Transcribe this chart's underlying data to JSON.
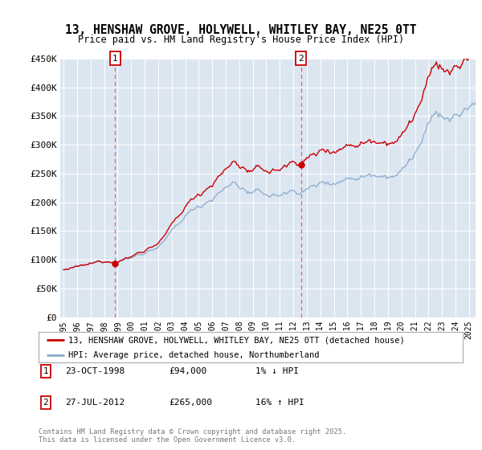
{
  "title": "13, HENSHAW GROVE, HOLYWELL, WHITLEY BAY, NE25 0TT",
  "subtitle": "Price paid vs. HM Land Registry's House Price Index (HPI)",
  "ylim": [
    0,
    450000
  ],
  "xlim_start": 1994.75,
  "xlim_end": 2025.5,
  "sale1_x": 1998.81,
  "sale1_y": 94000,
  "sale1_label": "1",
  "sale2_x": 2012.57,
  "sale2_y": 265000,
  "sale2_label": "2",
  "red_line_color": "#cc0000",
  "blue_line_color": "#88aacc",
  "dashed_line_color": "#dd6666",
  "background_color": "#dce6f1",
  "legend_line1": "13, HENSHAW GROVE, HOLYWELL, WHITLEY BAY, NE25 0TT (detached house)",
  "legend_line2": "HPI: Average price, detached house, Northumberland",
  "footnote_line1": "Contains HM Land Registry data © Crown copyright and database right 2025.",
  "footnote_line2": "This data is licensed under the Open Government Licence v3.0.",
  "sale_box_annotations": [
    {
      "num": "1",
      "date": "23-OCT-1998",
      "price": "£94,000",
      "hpi": "1% ↓ HPI"
    },
    {
      "num": "2",
      "date": "27-JUL-2012",
      "price": "£265,000",
      "hpi": "16% ↑ HPI"
    }
  ]
}
